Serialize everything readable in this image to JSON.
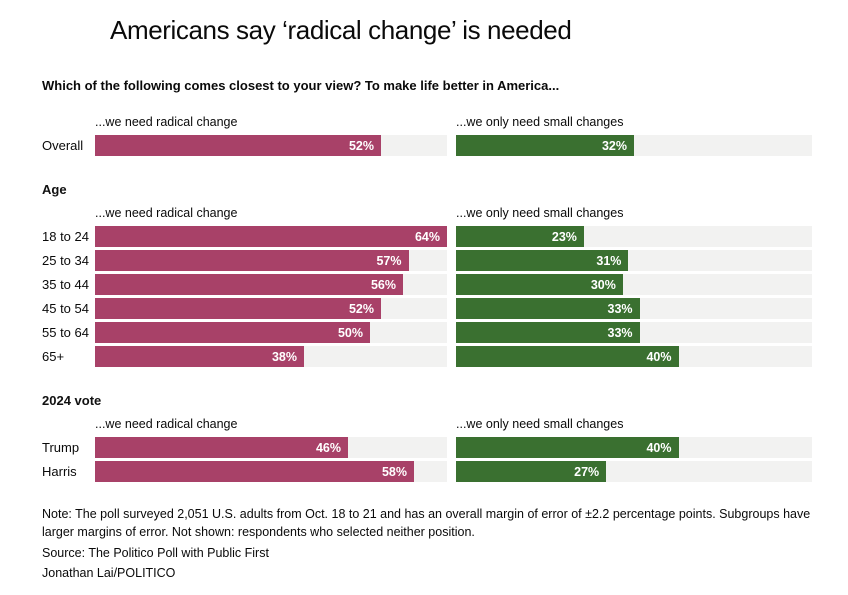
{
  "chart_data": {
    "type": "bar",
    "orientation": "horizontal",
    "title": "Americans say ‘radical change’ is needed",
    "subtitle": "Which of the following comes closest to your view? To make life better in America...",
    "series_headers": [
      "...we need radical change",
      "...we only need small changes"
    ],
    "series_colors": [
      "#a84168",
      "#3a7030"
    ],
    "track_color": "#f2f2f1",
    "xlim": [
      0,
      64
    ],
    "value_suffix": "%",
    "legend_position": "column-headers",
    "grid": false,
    "sections": [
      {
        "heading": null,
        "rows": [
          {
            "label": "Overall",
            "values": [
              52,
              32
            ]
          }
        ]
      },
      {
        "heading": "Age",
        "rows": [
          {
            "label": "18 to 24",
            "values": [
              64,
              23
            ]
          },
          {
            "label": "25 to 34",
            "values": [
              57,
              31
            ]
          },
          {
            "label": "35 to 44",
            "values": [
              56,
              30
            ]
          },
          {
            "label": "45 to 54",
            "values": [
              52,
              33
            ]
          },
          {
            "label": "55 to 64",
            "values": [
              50,
              33
            ]
          },
          {
            "label": "65+",
            "values": [
              38,
              40
            ]
          }
        ]
      },
      {
        "heading": "2024 vote",
        "rows": [
          {
            "label": "Trump",
            "values": [
              46,
              40
            ]
          },
          {
            "label": "Harris",
            "values": [
              58,
              27
            ]
          }
        ]
      }
    ],
    "series": [
      {
        "name": "...we need radical change",
        "values": [
          52,
          64,
          57,
          56,
          52,
          50,
          38,
          46,
          58
        ]
      },
      {
        "name": "...we only need small changes",
        "values": [
          32,
          23,
          31,
          30,
          33,
          33,
          40,
          40,
          27
        ]
      }
    ],
    "categories": [
      "Overall",
      "18 to 24",
      "25 to 34",
      "35 to 44",
      "45 to 54",
      "55 to 64",
      "65+",
      "Trump",
      "Harris"
    ]
  },
  "footer": {
    "note": "Note: The poll surveyed 2,051 U.S. adults from Oct. 18 to 21 and has an overall margin of error of ±2.2 percentage points. Subgroups have larger margins of error. Not shown: respondents who selected neither position.",
    "source": "Source: The Politico Poll with Public First",
    "byline": "Jonathan Lai/POLITICO"
  }
}
